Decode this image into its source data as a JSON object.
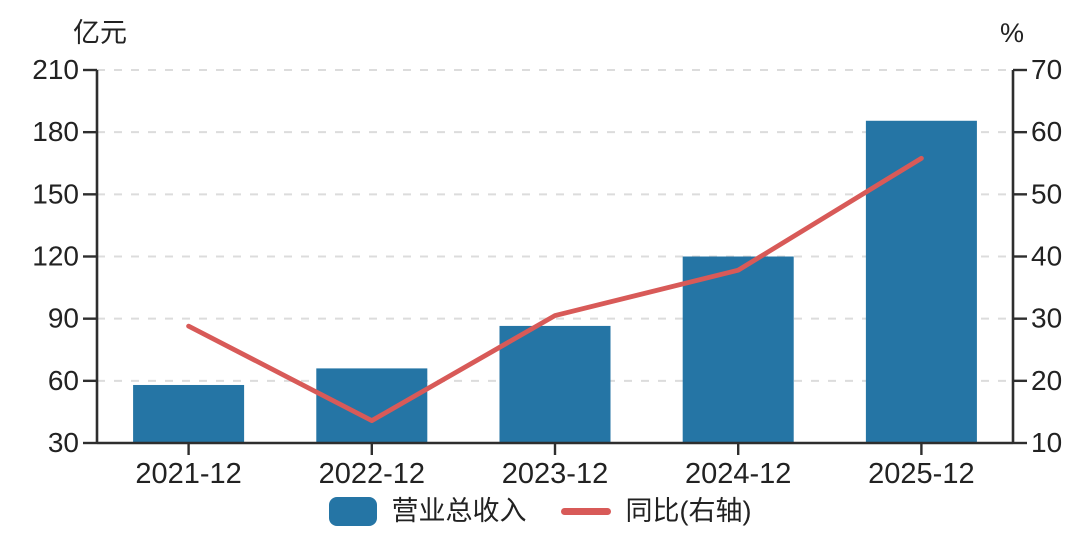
{
  "chart_data": {
    "type": "bar+line combo",
    "categories": [
      "2021-12",
      "2022-12",
      "2023-12",
      "2024-12",
      "2025-12"
    ],
    "series": [
      {
        "name": "营业总收入",
        "type": "bar",
        "axis": "left",
        "unit": "亿元",
        "color": "#2575A5",
        "values": [
          58,
          66,
          86.5,
          120,
          185.5
        ]
      },
      {
        "name": "同比(右轴)",
        "type": "line",
        "axis": "right",
        "unit": "%",
        "color": "#D85A58",
        "values": [
          28.8,
          13.6,
          30.5,
          37.8,
          55.8
        ]
      }
    ],
    "left_axis": {
      "label": "亿元",
      "min": 30,
      "max": 210,
      "step": 30,
      "ticks": [
        210,
        180,
        150,
        120,
        90,
        60,
        30
      ]
    },
    "right_axis": {
      "label": "%",
      "min": 10,
      "max": 70,
      "step": 10,
      "ticks": [
        70,
        60,
        50,
        40,
        30,
        20,
        10
      ]
    },
    "grid": "dashed horizontal gridlines at every left-axis tick except baseline",
    "legend_position": "bottom-center",
    "title": ""
  },
  "legend": {
    "items": [
      {
        "label": "营业总收入",
        "swatch": "bar",
        "color": "#2575A5"
      },
      {
        "label": "同比(右轴)",
        "swatch": "line",
        "color": "#D85A58"
      }
    ]
  },
  "style": {
    "background": "#ffffff",
    "axis_color": "#2e2e2e",
    "grid_color": "#dcdcdc",
    "text_color": "#222222"
  }
}
